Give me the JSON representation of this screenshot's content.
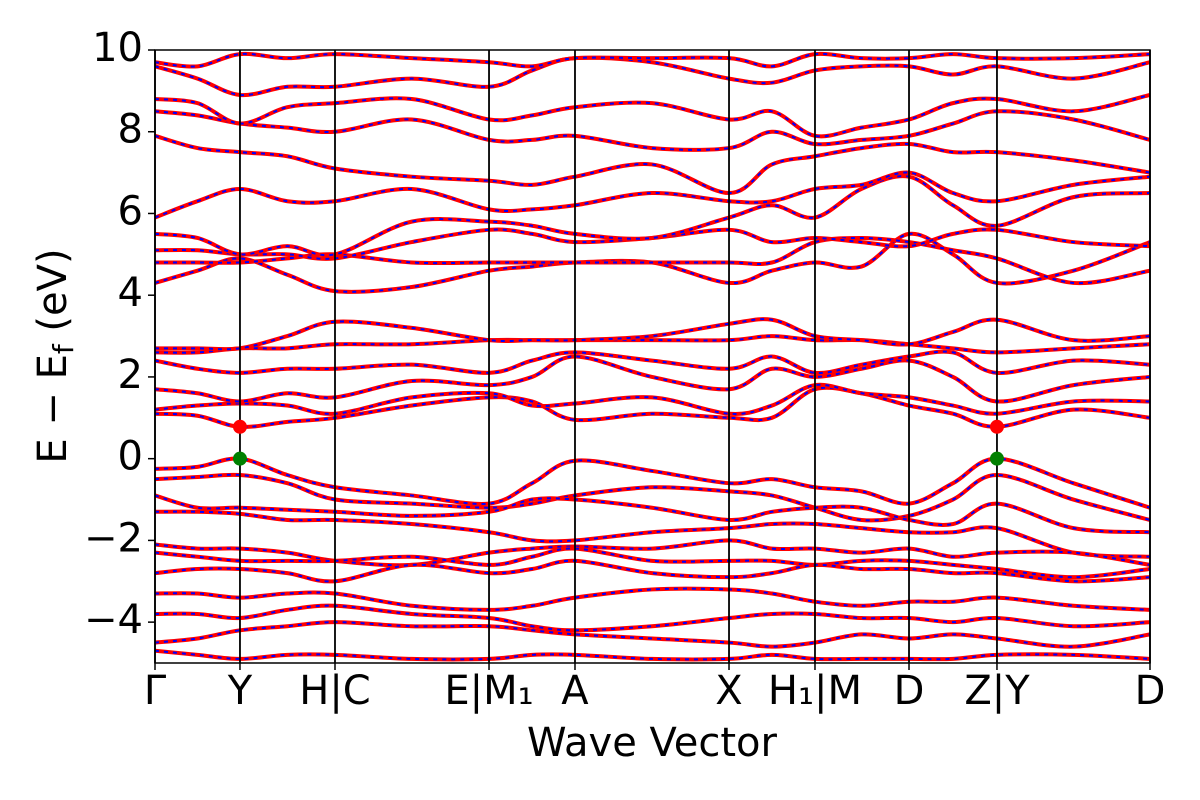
{
  "chart_data": {
    "type": "band",
    "xlabel": "Wave Vector",
    "ylabel": [
      "E − E",
      "f",
      " (eV)"
    ],
    "xlim": [
      0,
      1
    ],
    "ylim": [
      -5,
      10
    ],
    "yticks": [
      {
        "value": -4,
        "label": "−4"
      },
      {
        "value": -2,
        "label": "−2"
      },
      0,
      2,
      4,
      6,
      8,
      10
    ],
    "xticks": [
      {
        "value": 0,
        "label": "Γ"
      },
      {
        "value": 0.0854,
        "label": "Y"
      },
      {
        "value": 0.1809,
        "label": "H|C"
      },
      {
        "value": 0.3357,
        "label": "E|M₁"
      },
      {
        "value": 0.4221,
        "label": "A"
      },
      {
        "value": 0.5769,
        "label": "X"
      },
      {
        "value": 0.6633,
        "label": "H₁|M"
      },
      {
        "value": 0.7578,
        "label": "D"
      },
      {
        "value": 0.8462,
        "label": "Z|Y"
      },
      {
        "value": 1,
        "label": "D"
      }
    ],
    "color": "#ff0000",
    "dash_color": "#0000ff",
    "x": [
      0,
      0.0427,
      0.0854,
      0.133,
      0.1809,
      0.258,
      0.3357,
      0.379,
      0.4221,
      0.4995,
      0.5769,
      0.62,
      0.6633,
      0.71,
      0.7578,
      0.802,
      0.8462,
      0.923,
      1.0
    ],
    "series": [
      {
        "values": [
          -0.25,
          -0.2,
          0,
          -0.4,
          -0.7,
          -0.9,
          -1.1,
          -0.6,
          -0.05,
          -0.3,
          -0.6,
          -0.5,
          -0.7,
          -0.8,
          -1.1,
          -0.6,
          0,
          -0.6,
          -1.2
        ]
      },
      {
        "values": [
          -0.5,
          -0.45,
          -0.4,
          -0.6,
          -1.0,
          -1.1,
          -1.2,
          -1.1,
          -0.9,
          -0.7,
          -0.8,
          -0.9,
          -1.2,
          -1.5,
          -1.4,
          -1.0,
          -0.4,
          -1.0,
          -1.5
        ]
      },
      {
        "values": [
          -0.9,
          -1.2,
          -1.2,
          -1.25,
          -1.3,
          -1.4,
          -1.3,
          -1.0,
          -1.0,
          -1.2,
          -1.5,
          -1.3,
          -1.2,
          -1.2,
          -1.5,
          -1.6,
          -1.1,
          -1.7,
          -1.8
        ]
      },
      {
        "values": [
          -1.3,
          -1.3,
          -1.35,
          -1.5,
          -1.5,
          -1.6,
          -1.8,
          -2.0,
          -2.0,
          -1.8,
          -1.7,
          -1.6,
          -1.6,
          -1.7,
          -1.8,
          -1.8,
          -1.7,
          -2.3,
          -2.4
        ]
      },
      {
        "values": [
          -2.1,
          -2.2,
          -2.2,
          -2.3,
          -2.5,
          -2.6,
          -2.3,
          -2.2,
          -2.15,
          -2.2,
          -2.0,
          -2.2,
          -2.2,
          -2.3,
          -2.2,
          -2.4,
          -2.3,
          -2.3,
          -2.6
        ]
      },
      {
        "values": [
          -2.3,
          -2.4,
          -2.5,
          -2.5,
          -2.5,
          -2.4,
          -2.6,
          -2.4,
          -2.2,
          -2.5,
          -2.5,
          -2.5,
          -2.6,
          -2.5,
          -2.5,
          -2.6,
          -2.7,
          -2.9,
          -2.7
        ]
      },
      {
        "values": [
          -2.8,
          -2.7,
          -2.7,
          -2.8,
          -3.0,
          -2.6,
          -2.8,
          -2.7,
          -2.5,
          -2.8,
          -2.9,
          -2.8,
          -2.6,
          -2.7,
          -2.7,
          -2.8,
          -2.8,
          -3.0,
          -2.9
        ]
      },
      {
        "values": [
          -3.3,
          -3.3,
          -3.4,
          -3.3,
          -3.3,
          -3.6,
          -3.7,
          -3.6,
          -3.4,
          -3.2,
          -3.2,
          -3.3,
          -3.5,
          -3.6,
          -3.5,
          -3.5,
          -3.4,
          -3.6,
          -3.7
        ]
      },
      {
        "values": [
          -3.8,
          -3.8,
          -3.9,
          -3.7,
          -3.6,
          -3.8,
          -3.9,
          -4.1,
          -4.2,
          -4.1,
          -3.9,
          -3.8,
          -3.8,
          -3.9,
          -3.9,
          -4.0,
          -3.9,
          -4.1,
          -4.0
        ]
      },
      {
        "values": [
          -4.5,
          -4.4,
          -4.2,
          -4.1,
          -4.0,
          -4.1,
          -4.1,
          -4.2,
          -4.3,
          -4.4,
          -4.5,
          -4.6,
          -4.5,
          -4.3,
          -4.4,
          -4.3,
          -4.4,
          -4.6,
          -4.3
        ]
      },
      {
        "values": [
          -4.7,
          -4.8,
          -4.9,
          -4.8,
          -4.8,
          -4.9,
          -4.9,
          -4.8,
          -4.8,
          -4.9,
          -4.9,
          -4.8,
          -4.9,
          -4.9,
          -4.9,
          -4.9,
          -4.8,
          -4.8,
          -4.9
        ]
      },
      {
        "values": [
          1.1,
          1.05,
          0.78,
          0.9,
          1.0,
          1.3,
          1.5,
          1.4,
          0.95,
          1.1,
          1.0,
          1.0,
          1.7,
          1.6,
          1.3,
          1.1,
          0.78,
          1.2,
          1.0
        ]
      },
      {
        "values": [
          1.2,
          1.3,
          1.35,
          1.3,
          1.1,
          1.5,
          1.6,
          1.3,
          1.35,
          1.5,
          1.1,
          1.3,
          1.8,
          1.6,
          1.5,
          1.3,
          1.1,
          1.4,
          1.4
        ]
      },
      {
        "values": [
          1.7,
          1.6,
          1.4,
          1.6,
          1.5,
          1.9,
          1.8,
          2.0,
          2.5,
          2.0,
          1.7,
          2.2,
          2.0,
          2.2,
          2.4,
          2.0,
          1.4,
          1.8,
          2.0
        ]
      },
      {
        "values": [
          2.4,
          2.2,
          2.1,
          2.2,
          2.2,
          2.3,
          2.1,
          2.4,
          2.6,
          2.4,
          2.2,
          2.5,
          2.1,
          2.3,
          2.5,
          2.6,
          2.1,
          2.4,
          2.3
        ]
      },
      {
        "values": [
          2.6,
          2.6,
          2.7,
          2.7,
          2.8,
          2.8,
          2.9,
          2.9,
          2.9,
          2.9,
          2.9,
          3.0,
          2.9,
          2.9,
          2.8,
          2.7,
          2.6,
          2.7,
          2.8
        ]
      },
      {
        "values": [
          2.7,
          2.7,
          2.7,
          3.0,
          3.35,
          3.2,
          2.9,
          2.9,
          2.9,
          3.0,
          3.3,
          3.4,
          3.0,
          2.9,
          2.8,
          3.1,
          3.4,
          2.9,
          3.0
        ]
      },
      {
        "values": [
          4.3,
          4.6,
          4.9,
          4.5,
          4.1,
          4.2,
          4.6,
          4.7,
          4.8,
          4.8,
          4.3,
          4.6,
          4.8,
          4.7,
          5.5,
          5.0,
          4.3,
          4.6,
          5.3
        ]
      },
      {
        "values": [
          4.8,
          4.8,
          4.8,
          4.9,
          5.0,
          4.8,
          4.8,
          4.8,
          4.8,
          4.8,
          4.8,
          4.8,
          5.3,
          5.4,
          5.3,
          5.1,
          4.9,
          4.3,
          4.6
        ]
      },
      {
        "values": [
          5.1,
          5.1,
          5.0,
          5.0,
          4.9,
          5.3,
          5.6,
          5.5,
          5.3,
          5.4,
          5.6,
          5.3,
          5.4,
          5.3,
          5.2,
          5.5,
          5.6,
          5.3,
          5.2
        ]
      },
      {
        "values": [
          5.5,
          5.4,
          5.0,
          5.2,
          5.0,
          5.8,
          5.8,
          5.7,
          5.5,
          5.4,
          5.9,
          6.2,
          5.9,
          6.6,
          6.9,
          6.2,
          5.7,
          6.4,
          6.5
        ]
      },
      {
        "values": [
          5.9,
          6.3,
          6.6,
          6.3,
          6.3,
          6.6,
          6.1,
          6.1,
          6.2,
          6.5,
          6.3,
          6.3,
          6.6,
          6.7,
          7.0,
          6.5,
          6.3,
          6.7,
          6.9
        ]
      },
      {
        "values": [
          7.9,
          7.6,
          7.5,
          7.4,
          7.1,
          6.9,
          6.8,
          6.7,
          6.9,
          7.2,
          6.5,
          7.2,
          7.4,
          7.6,
          7.7,
          7.5,
          7.5,
          7.3,
          7.0
        ]
      },
      {
        "values": [
          8.5,
          8.4,
          8.2,
          8.1,
          8.0,
          8.3,
          7.8,
          7.8,
          7.9,
          7.6,
          7.6,
          8.0,
          7.7,
          7.8,
          7.9,
          8.2,
          8.5,
          8.3,
          7.8
        ]
      },
      {
        "values": [
          8.8,
          8.7,
          8.2,
          8.6,
          8.7,
          8.8,
          8.3,
          8.4,
          8.6,
          8.7,
          8.3,
          8.5,
          7.9,
          8.1,
          8.3,
          8.7,
          8.8,
          8.5,
          8.9
        ]
      },
      {
        "values": [
          9.6,
          9.3,
          8.9,
          9.1,
          9.1,
          9.3,
          9.1,
          9.5,
          9.8,
          9.7,
          9.3,
          9.2,
          9.5,
          9.6,
          9.6,
          9.4,
          9.6,
          9.3,
          9.7
        ]
      },
      {
        "values": [
          9.7,
          9.6,
          9.9,
          9.8,
          9.9,
          9.8,
          9.7,
          9.6,
          9.8,
          9.8,
          9.8,
          9.6,
          9.9,
          9.8,
          9.8,
          9.9,
          9.8,
          9.8,
          9.9
        ]
      }
    ],
    "markers": [
      {
        "x": 0.0854,
        "y": 0,
        "color": "#008000"
      },
      {
        "x": 0.0854,
        "y": 0.78,
        "color": "#ff0000"
      },
      {
        "x": 0.8462,
        "y": 0,
        "color": "#008000"
      },
      {
        "x": 0.8462,
        "y": 0.78,
        "color": "#ff0000"
      }
    ]
  }
}
